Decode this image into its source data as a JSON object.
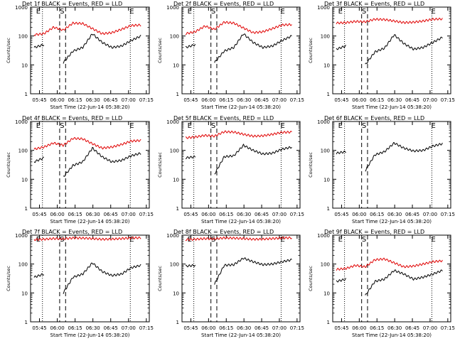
{
  "chart_data": [
    {
      "type": "line",
      "title": "Det 1f BLACK = Events, RED = LLD",
      "xlabel": "Start Time (22-Jun-14 05:38:20)",
      "ylabel": "Counts/sec",
      "yscale": "log",
      "ylim": [
        1,
        1000
      ],
      "x_ticks": [
        "05:45",
        "06:00",
        "06:15",
        "06:30",
        "06:45",
        "07:00",
        "07:15"
      ],
      "y_ticks": [
        "1",
        "10",
        "100",
        "1000"
      ],
      "markers": [
        "E",
        "S",
        "E"
      ],
      "series": [
        {
          "color": "#000000",
          "values": [
            40,
            50,
            null,
            12,
            30,
            40,
            120,
            60,
            40,
            45,
            70,
            100
          ]
        },
        {
          "color": "#e00000",
          "values": [
            110,
            120,
            200,
            160,
            280,
            270,
            180,
            120,
            130,
            170,
            230,
            240
          ]
        }
      ]
    },
    {
      "type": "line",
      "title": "Det 2f BLACK = Events, RED = LLD",
      "xlabel": "Start Time (22-Jun-14 05:38:20)",
      "ylabel": "Counts/sec",
      "yscale": "log",
      "ylim": [
        1,
        1000
      ],
      "x_ticks": [
        "05:45",
        "06:00",
        "06:15",
        "06:30",
        "06:45",
        "07:00",
        "07:15"
      ],
      "y_ticks": [
        "1",
        "10",
        "100",
        "1000"
      ],
      "markers": [
        "E",
        "S",
        "E"
      ],
      "series": [
        {
          "color": "#000000",
          "values": [
            40,
            50,
            null,
            12,
            30,
            40,
            120,
            60,
            40,
            45,
            70,
            100
          ]
        },
        {
          "color": "#e00000",
          "values": [
            120,
            140,
            220,
            170,
            300,
            280,
            190,
            130,
            140,
            180,
            240,
            250
          ]
        }
      ]
    },
    {
      "type": "line",
      "title": "Det 3f BLACK = Events, RED = LLD",
      "xlabel": "Start Time (22-Jun-14 05:38:20)",
      "ylabel": "Counts/sec",
      "yscale": "log",
      "ylim": [
        1,
        1000
      ],
      "x_ticks": [
        "05:45",
        "06:00",
        "06:15",
        "06:30",
        "06:45",
        "07:00",
        "07:15"
      ],
      "y_ticks": [
        "1",
        "10",
        "100",
        "1000"
      ],
      "markers": [
        "E",
        "S",
        "E"
      ],
      "series": [
        {
          "color": "#000000",
          "values": [
            35,
            45,
            null,
            10,
            28,
            38,
            110,
            55,
            35,
            40,
            60,
            90
          ]
        },
        {
          "color": "#e00000",
          "values": [
            280,
            290,
            320,
            310,
            380,
            370,
            330,
            290,
            300,
            330,
            380,
            390
          ]
        }
      ]
    },
    {
      "type": "line",
      "title": "Det 4f BLACK = Events, RED = LLD",
      "xlabel": "Start Time (22-Jun-14 05:38:20)",
      "ylabel": "Counts/sec",
      "yscale": "log",
      "ylim": [
        1,
        1000
      ],
      "x_ticks": [
        "05:45",
        "06:00",
        "06:15",
        "06:30",
        "06:45",
        "07:00",
        "07:15"
      ],
      "y_ticks": [
        "1",
        "10",
        "100",
        "1000"
      ],
      "markers": [
        "E",
        "S",
        "E"
      ],
      "series": [
        {
          "color": "#000000",
          "values": [
            40,
            55,
            null,
            12,
            30,
            40,
            120,
            60,
            40,
            45,
            65,
            80
          ]
        },
        {
          "color": "#e00000",
          "values": [
            110,
            130,
            180,
            150,
            260,
            250,
            170,
            120,
            130,
            160,
            210,
            220
          ]
        }
      ]
    },
    {
      "type": "line",
      "title": "Det 5f BLACK = Events, RED = LLD",
      "xlabel": "Start Time (22-Jun-14 05:38:20)",
      "ylabel": "Counts/sec",
      "yscale": "log",
      "ylim": [
        1,
        1000
      ],
      "x_ticks": [
        "05:45",
        "06:00",
        "06:15",
        "06:30",
        "06:45",
        "07:00",
        "07:15"
      ],
      "y_ticks": [
        "1",
        "10",
        "100",
        "1000"
      ],
      "markers": [
        "E",
        "S",
        "E"
      ],
      "series": [
        {
          "color": "#000000",
          "values": [
            55,
            60,
            null,
            15,
            60,
            65,
            150,
            100,
            75,
            80,
            110,
            130
          ]
        },
        {
          "color": "#e00000",
          "values": [
            270,
            290,
            330,
            310,
            440,
            430,
            360,
            310,
            320,
            360,
            420,
            430
          ]
        }
      ]
    },
    {
      "type": "line",
      "title": "Det 6f BLACK = Events, RED = LLD",
      "xlabel": "Start Time (22-Jun-14 05:38:20)",
      "ylabel": "Counts/sec",
      "yscale": "log",
      "ylim": [
        1,
        1000
      ],
      "x_ticks": [
        "05:45",
        "06:00",
        "06:15",
        "06:30",
        "06:45",
        "07:00",
        "07:15"
      ],
      "y_ticks": [
        "1",
        "10",
        "100",
        "1000"
      ],
      "markers": [
        "E",
        "S",
        "E"
      ],
      "series": [
        {
          "color": "#000000",
          "values": [
            80,
            90,
            null,
            20,
            70,
            90,
            180,
            120,
            95,
            100,
            140,
            170
          ]
        }
      ]
    },
    {
      "type": "line",
      "title": "Det 7f BLACK = Events, RED = LLD",
      "xlabel": "Start Time (22-Jun-14 05:38:20)",
      "ylabel": "Counts/sec",
      "yscale": "log",
      "ylim": [
        1,
        1000
      ],
      "x_ticks": [
        "05:45",
        "06:00",
        "06:15",
        "06:30",
        "06:45",
        "07:00",
        "07:15"
      ],
      "y_ticks": [
        "1",
        "10",
        "100",
        "1000"
      ],
      "markers": [
        "E",
        "S",
        "E"
      ],
      "series": [
        {
          "color": "#000000",
          "values": [
            35,
            45,
            null,
            10,
            35,
            45,
            110,
            55,
            40,
            45,
            75,
            90
          ]
        },
        {
          "color": "#e00000",
          "values": [
            700,
            720,
            760,
            740,
            800,
            790,
            760,
            720,
            730,
            760,
            800,
            810
          ]
        }
      ]
    },
    {
      "type": "line",
      "title": "Det 8f BLACK = Events, RED = LLD",
      "xlabel": "Start Time (22-Jun-14 05:38:20)",
      "ylabel": "Counts/sec",
      "yscale": "log",
      "ylim": [
        1,
        1000
      ],
      "x_ticks": [
        "05:45",
        "06:00",
        "06:15",
        "06:30",
        "06:45",
        "07:00",
        "07:15"
      ],
      "y_ticks": [
        "1",
        "10",
        "100",
        "1000"
      ],
      "markers": [
        "E",
        "S",
        "E"
      ],
      "series": [
        {
          "color": "#000000",
          "values": [
            85,
            90,
            null,
            20,
            90,
            95,
            160,
            120,
            95,
            100,
            120,
            140
          ]
        },
        {
          "color": "#e00000",
          "values": [
            700,
            720,
            760,
            740,
            800,
            790,
            760,
            720,
            730,
            760,
            800,
            810
          ]
        }
      ]
    },
    {
      "type": "line",
      "title": "Det 9f BLACK = Events, RED = LLD",
      "xlabel": "Start Time (22-Jun-14 05:38:20)",
      "ylabel": "Counts/sec",
      "yscale": "log",
      "ylim": [
        1,
        1000
      ],
      "x_ticks": [
        "05:45",
        "06:00",
        "06:15",
        "06:30",
        "06:45",
        "07:00",
        "07:15"
      ],
      "y_ticks": [
        "1",
        "10",
        "100",
        "1000"
      ],
      "markers": [
        "E",
        "S",
        "E"
      ],
      "series": [
        {
          "color": "#000000",
          "values": [
            25,
            30,
            null,
            8,
            25,
            30,
            60,
            45,
            30,
            35,
            45,
            60
          ]
        },
        {
          "color": "#e00000",
          "values": [
            65,
            70,
            90,
            80,
            140,
            150,
            110,
            80,
            85,
            100,
            120,
            130
          ]
        }
      ]
    }
  ]
}
